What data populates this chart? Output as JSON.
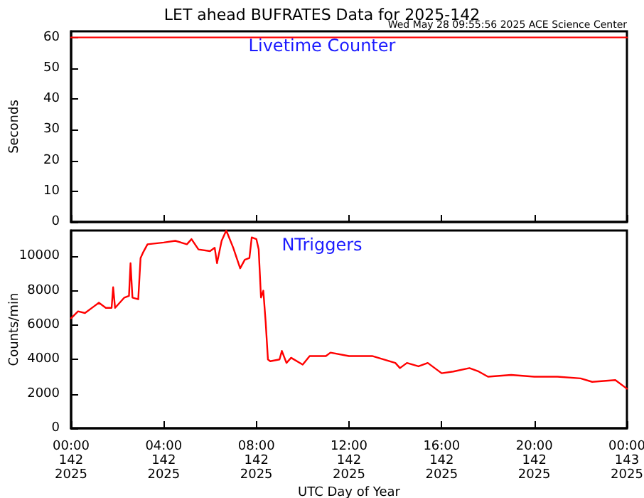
{
  "chart_data": [
    {
      "type": "line",
      "title": "LET ahead BUFRATES Data for 2025-142",
      "annotations": [
        "Wed May 28 09:55:56 2025 ACE Science Center"
      ],
      "ylabel": "Seconds",
      "x": [
        "2025-05-22T00:00",
        "2025-05-23T00:00"
      ],
      "series": [
        {
          "name": "Livetime Counter",
          "color": "#ff0000",
          "values": [
            60,
            60
          ]
        }
      ],
      "xlim": [
        "2025-05-22T00:00",
        "2025-05-23T00:00"
      ],
      "xticks": [
        {
          "value": "2025-05-22T00:00",
          "label": null
        },
        {
          "value": "2025-05-22T04:00",
          "label": null
        },
        {
          "value": "2025-05-22T08:00",
          "label": null
        },
        {
          "value": "2025-05-22T12:00",
          "label": null
        },
        {
          "value": "2025-05-22T16:00",
          "label": null
        },
        {
          "value": "2025-05-22T20:00",
          "label": null
        },
        {
          "value": "2025-05-23T00:00",
          "label": null
        }
      ],
      "ylim": [
        0,
        62
      ],
      "yticks": [
        0,
        10,
        20,
        30,
        40,
        50,
        60
      ],
      "tick_labels": "y",
      "grid": false,
      "legend": false,
      "marker": "none",
      "line_style": "solid"
    },
    {
      "type": "line",
      "xlabel": "UTC Day of Year",
      "ylabel": "Counts/min",
      "x": [
        "2025-05-22T00:00",
        "2025-05-22T00:18",
        "2025-05-22T00:36",
        "2025-05-22T01:00",
        "2025-05-22T01:12",
        "2025-05-22T01:30",
        "2025-05-22T01:45",
        "2025-05-22T01:49",
        "2025-05-22T01:54",
        "2025-05-22T02:18",
        "2025-05-22T02:30",
        "2025-05-22T02:34",
        "2025-05-22T02:39",
        "2025-05-22T02:54",
        "2025-05-22T03:00",
        "2025-05-22T03:06",
        "2025-05-22T03:18",
        "2025-05-22T04:00",
        "2025-05-22T04:30",
        "2025-05-22T05:00",
        "2025-05-22T05:12",
        "2025-05-22T05:30",
        "2025-05-22T06:00",
        "2025-05-22T06:12",
        "2025-05-22T06:18",
        "2025-05-22T06:30",
        "2025-05-22T06:42",
        "2025-05-22T07:00",
        "2025-05-22T07:18",
        "2025-05-22T07:30",
        "2025-05-22T07:42",
        "2025-05-22T07:48",
        "2025-05-22T08:00",
        "2025-05-22T08:06",
        "2025-05-22T08:12",
        "2025-05-22T08:18",
        "2025-05-22T08:24",
        "2025-05-22T08:30",
        "2025-05-22T08:36",
        "2025-05-22T09:00",
        "2025-05-22T09:06",
        "2025-05-22T09:18",
        "2025-05-22T09:30",
        "2025-05-22T10:00",
        "2025-05-22T10:18",
        "2025-05-22T11:00",
        "2025-05-22T11:12",
        "2025-05-22T12:00",
        "2025-05-22T13:00",
        "2025-05-22T14:00",
        "2025-05-22T14:12",
        "2025-05-22T14:30",
        "2025-05-22T15:00",
        "2025-05-22T15:24",
        "2025-05-22T16:00",
        "2025-05-22T16:30",
        "2025-05-22T17:12",
        "2025-05-22T17:36",
        "2025-05-22T18:00",
        "2025-05-22T19:00",
        "2025-05-22T20:00",
        "2025-05-22T21:00",
        "2025-05-22T22:00",
        "2025-05-22T22:30",
        "2025-05-22T23:30",
        "2025-05-23T00:00"
      ],
      "series": [
        {
          "name": "NTriggers",
          "color": "#ff0000",
          "values": [
            6400,
            6800,
            6700,
            7100,
            7300,
            7000,
            7000,
            8200,
            7000,
            7600,
            7700,
            9600,
            7600,
            7500,
            9900,
            10200,
            10700,
            10800,
            10900,
            10700,
            11000,
            10400,
            10300,
            10500,
            9600,
            10900,
            11500,
            10500,
            9300,
            9800,
            9900,
            11100,
            11000,
            10400,
            7600,
            8000,
            6200,
            4000,
            3900,
            4000,
            4500,
            3800,
            4100,
            3700,
            4200,
            4200,
            4400,
            4200,
            4200,
            3800,
            3500,
            3800,
            3600,
            3800,
            3200,
            3300,
            3500,
            3300,
            3000,
            3100,
            3000,
            3000,
            2900,
            2700,
            2800,
            2300
          ]
        }
      ],
      "xlim": [
        "2025-05-22T00:00",
        "2025-05-23T00:00"
      ],
      "xticks": [
        {
          "value": "2025-05-22T00:00",
          "label": "00:00\n142\n2025"
        },
        {
          "value": "2025-05-22T04:00",
          "label": "04:00\n142\n2025"
        },
        {
          "value": "2025-05-22T08:00",
          "label": "08:00\n142\n2025"
        },
        {
          "value": "2025-05-22T12:00",
          "label": "12:00\n142\n2025"
        },
        {
          "value": "2025-05-22T16:00",
          "label": "16:00\n142\n2025"
        },
        {
          "value": "2025-05-22T20:00",
          "label": "20:00\n142\n2025"
        },
        {
          "value": "2025-05-23T00:00",
          "label": "00:00\n143\n2025"
        }
      ],
      "ylim": [
        0,
        11500
      ],
      "yticks": [
        0,
        2000,
        4000,
        6000,
        8000,
        10000
      ],
      "grid": false,
      "legend": false,
      "marker": "none",
      "line_style": "solid"
    }
  ]
}
